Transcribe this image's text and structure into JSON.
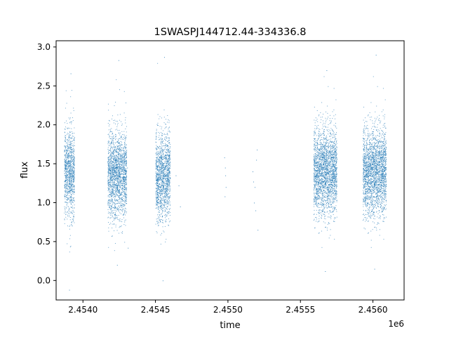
{
  "chart_data": {
    "type": "scatter",
    "title": "1SWASPJ144712.44-334336.8",
    "xlabel": "time",
    "ylabel": "flux",
    "x_offset_label": "1e6",
    "xlim": [
      2453815,
      2456215
    ],
    "ylim": [
      -0.25,
      3.08
    ],
    "x_ticks": [
      2454000,
      2454500,
      2455000,
      2455500,
      2456000
    ],
    "x_tick_labels": [
      "2.4540",
      "2.4545",
      "2.4550",
      "2.4555",
      "2.4560"
    ],
    "y_ticks": [
      0.0,
      0.5,
      1.0,
      1.5,
      2.0,
      2.5,
      3.0
    ],
    "y_tick_labels": [
      "0.0",
      "0.5",
      "1.0",
      "1.5",
      "2.0",
      "2.5",
      "3.0"
    ],
    "grid": false,
    "legend": "none",
    "marker_color": "#1f77b4",
    "seasons": [
      {
        "x_start": 2453870,
        "x_end": 2453940,
        "y_center": 1.38,
        "y_min": -0.12,
        "y_max": 2.66
      },
      {
        "x_start": 2454170,
        "x_end": 2454300,
        "y_center": 1.36,
        "y_min": 0.2,
        "y_max": 2.83
      },
      {
        "x_start": 2454500,
        "x_end": 2454600,
        "y_center": 1.35,
        "y_min": 0.0,
        "y_max": 2.87
      },
      {
        "x_start": 2455590,
        "x_end": 2455750,
        "y_center": 1.4,
        "y_min": 0.12,
        "y_max": 2.7
      },
      {
        "x_start": 2455930,
        "x_end": 2456090,
        "y_center": 1.4,
        "y_min": 0.15,
        "y_max": 2.9
      }
    ],
    "sparse_points": [
      {
        "x": 2454300,
        "y": 1.1
      },
      {
        "x": 2454310,
        "y": 0.42
      },
      {
        "x": 2454305,
        "y": 1.45
      },
      {
        "x": 2454640,
        "y": 1.35
      },
      {
        "x": 2454660,
        "y": 1.22
      },
      {
        "x": 2454670,
        "y": 0.95
      },
      {
        "x": 2454975,
        "y": 1.58
      },
      {
        "x": 2454980,
        "y": 1.45
      },
      {
        "x": 2454985,
        "y": 1.2
      },
      {
        "x": 2454978,
        "y": 1.08
      },
      {
        "x": 2454982,
        "y": 1.35
      },
      {
        "x": 2455170,
        "y": 1.4
      },
      {
        "x": 2455175,
        "y": 1.27
      },
      {
        "x": 2455180,
        "y": 1.0
      },
      {
        "x": 2455190,
        "y": 0.9
      },
      {
        "x": 2455200,
        "y": 1.68
      },
      {
        "x": 2455195,
        "y": 1.55
      },
      {
        "x": 2455205,
        "y": 0.65
      },
      {
        "x": 2455185,
        "y": 1.2
      }
    ]
  }
}
